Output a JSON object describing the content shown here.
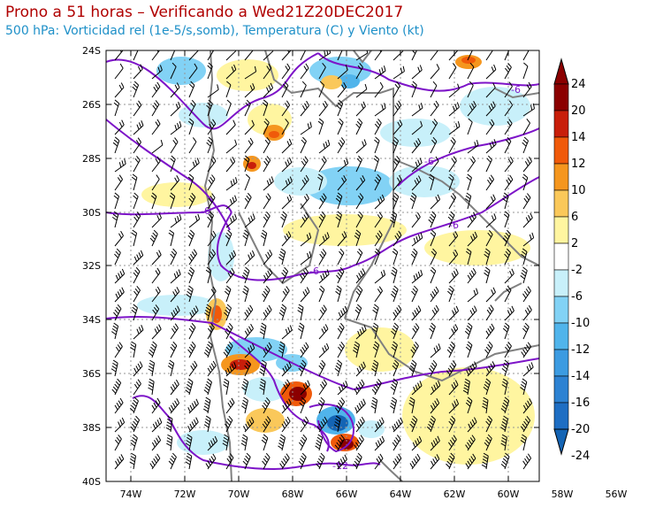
{
  "title": "Prono a 51 horas – Verificando a Wed21Z20DEC2017",
  "subtitle": "500 hPa: Vorticidad rel (1e-5/s,somb), Temperatura (C) y Viento (kt)",
  "lat_labels": [
    "24S",
    "26S",
    "28S",
    "30S",
    "32S",
    "34S",
    "36S",
    "38S",
    "40S"
  ],
  "lon_labels": [
    "74W",
    "72W",
    "70W",
    "68W",
    "66W",
    "64W",
    "62W",
    "60W",
    "58W",
    "56W"
  ],
  "contour_labels": [
    "-6",
    "-6",
    "-6",
    "-6",
    "-6",
    "-12"
  ],
  "colorbar": {
    "labels": [
      "24",
      "20",
      "14",
      "12",
      "10",
      "6",
      "2",
      "-2",
      "-6",
      "-10",
      "-12",
      "-14",
      "-16",
      "-20",
      "-24"
    ],
    "colors": [
      "#8b0000",
      "#c81e0a",
      "#f05a0a",
      "#f5961e",
      "#fac85a",
      "#fff5a0",
      "#ffffff",
      "#c8f0fa",
      "#82d2f5",
      "#50b4eb",
      "#3c9be1",
      "#2d82d2",
      "#1e6ec3",
      "#1464b4"
    ]
  },
  "colors": {
    "title": "#b00000",
    "subtitle": "#1e90c8",
    "temperature_contour": "#7d14c8",
    "borders": "#808080",
    "grid": "#969696"
  }
}
